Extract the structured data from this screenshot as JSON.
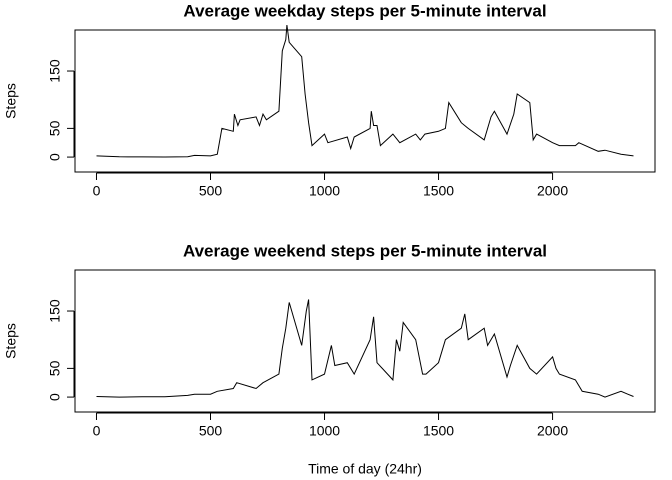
{
  "chart_data": [
    {
      "type": "line",
      "title": "Average weekday steps per 5-minute interval",
      "y_label": "Steps",
      "color": "#000000",
      "xlim": [
        -94.2,
        2449.2
      ],
      "ylim": [
        -26,
        221.5
      ],
      "xticks": [
        0,
        500,
        1000,
        1500,
        2000
      ],
      "yticks": [
        0,
        50,
        150
      ],
      "x": [
        0,
        100,
        200,
        300,
        400,
        430,
        500,
        530,
        550,
        600,
        605,
        620,
        630,
        700,
        715,
        730,
        745,
        800,
        815,
        830,
        835,
        845,
        900,
        915,
        930,
        945,
        1000,
        1015,
        1100,
        1115,
        1130,
        1200,
        1205,
        1215,
        1230,
        1245,
        1300,
        1330,
        1400,
        1420,
        1440,
        1500,
        1530,
        1545,
        1600,
        1630,
        1700,
        1730,
        1745,
        1800,
        1830,
        1845,
        1900,
        1915,
        1930,
        2000,
        2030,
        2100,
        2115,
        2200,
        2230,
        2300,
        2355
      ],
      "values": [
        2,
        0.5,
        0.3,
        0.2,
        0.5,
        3,
        2,
        5,
        50,
        45,
        75,
        55,
        65,
        70,
        55,
        75,
        65,
        80,
        185,
        205,
        230,
        200,
        175,
        110,
        60,
        20,
        40,
        25,
        35,
        15,
        35,
        50,
        80,
        55,
        55,
        20,
        40,
        25,
        40,
        30,
        40,
        45,
        50,
        95,
        60,
        50,
        30,
        70,
        80,
        40,
        75,
        110,
        95,
        30,
        40,
        25,
        20,
        20,
        25,
        10,
        12,
        5,
        2
      ]
    },
    {
      "type": "line",
      "title": "Average weekend steps per 5-minute interval",
      "y_label": "Steps",
      "x_label": "Time of day (24hr)",
      "color": "#000000",
      "xlim": [
        -94.2,
        2449.2
      ],
      "ylim": [
        -26,
        221.5
      ],
      "xticks": [
        0,
        500,
        1000,
        1500,
        2000
      ],
      "yticks": [
        0,
        50,
        150
      ],
      "x": [
        0,
        100,
        200,
        300,
        400,
        430,
        500,
        530,
        600,
        615,
        700,
        730,
        800,
        815,
        830,
        845,
        900,
        920,
        930,
        945,
        1000,
        1030,
        1045,
        1100,
        1130,
        1200,
        1215,
        1230,
        1300,
        1315,
        1330,
        1345,
        1400,
        1430,
        1445,
        1500,
        1530,
        1600,
        1615,
        1630,
        1700,
        1715,
        1745,
        1800,
        1815,
        1845,
        1900,
        1930,
        2000,
        2015,
        2030,
        2100,
        2130,
        2200,
        2230,
        2300,
        2330,
        2355
      ],
      "values": [
        1,
        0,
        0.5,
        0.5,
        3,
        5,
        5,
        10,
        15,
        25,
        15,
        25,
        40,
        85,
        120,
        165,
        90,
        150,
        170,
        30,
        40,
        90,
        55,
        60,
        40,
        100,
        140,
        60,
        30,
        100,
        80,
        130,
        100,
        40,
        40,
        60,
        100,
        120,
        145,
        100,
        120,
        90,
        110,
        35,
        55,
        90,
        50,
        40,
        70,
        50,
        40,
        30,
        10,
        5,
        0,
        10,
        5,
        1
      ]
    }
  ]
}
